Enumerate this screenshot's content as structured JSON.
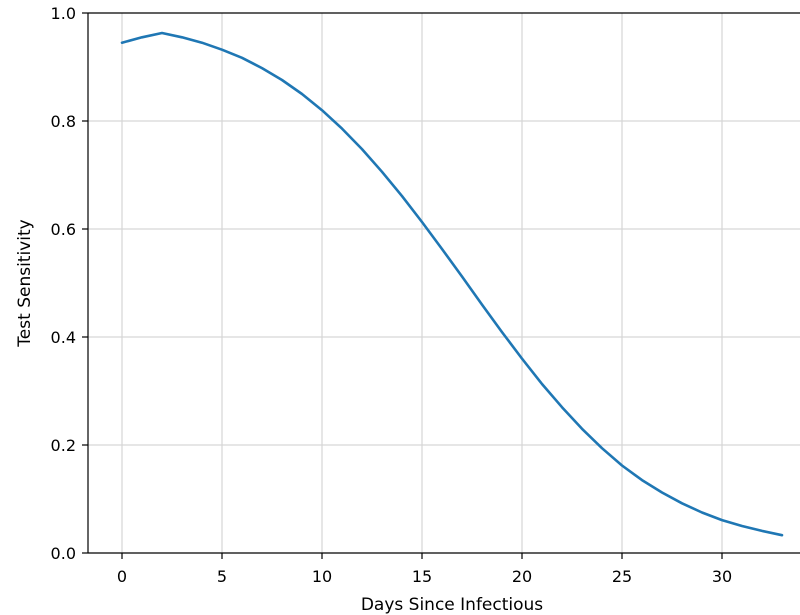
{
  "chart_data": {
    "type": "line",
    "xlabel": "Days Since Infectious",
    "ylabel": "Test Sensitivity",
    "xlim": [
      -1.7,
      33.9
    ],
    "ylim": [
      0.0,
      1.0
    ],
    "xticks": [
      0,
      5,
      10,
      15,
      20,
      25,
      30
    ],
    "yticks": [
      0.0,
      0.2,
      0.4,
      0.6,
      0.8,
      1.0
    ],
    "xtick_labels": [
      "0",
      "5",
      "10",
      "15",
      "20",
      "25",
      "30"
    ],
    "ytick_labels": [
      "0.0",
      "0.2",
      "0.4",
      "0.6",
      "0.8",
      "1.0"
    ],
    "grid": true,
    "line_color": "#1f77b4",
    "series": [
      {
        "x": [
          0,
          1,
          2,
          3,
          4,
          5,
          6,
          7,
          8,
          9,
          10,
          11,
          12,
          13,
          14,
          15,
          16,
          17,
          18,
          19,
          20,
          21,
          22,
          23,
          24,
          25,
          26,
          27,
          28,
          29,
          30,
          31,
          32,
          33
        ],
        "values": [
          0.945,
          0.955,
          0.963,
          0.955,
          0.945,
          0.932,
          0.917,
          0.898,
          0.876,
          0.85,
          0.82,
          0.786,
          0.748,
          0.706,
          0.661,
          0.613,
          0.563,
          0.512,
          0.46,
          0.409,
          0.36,
          0.313,
          0.27,
          0.23,
          0.194,
          0.162,
          0.135,
          0.112,
          0.092,
          0.075,
          0.061,
          0.05,
          0.041,
          0.033
        ]
      }
    ]
  }
}
